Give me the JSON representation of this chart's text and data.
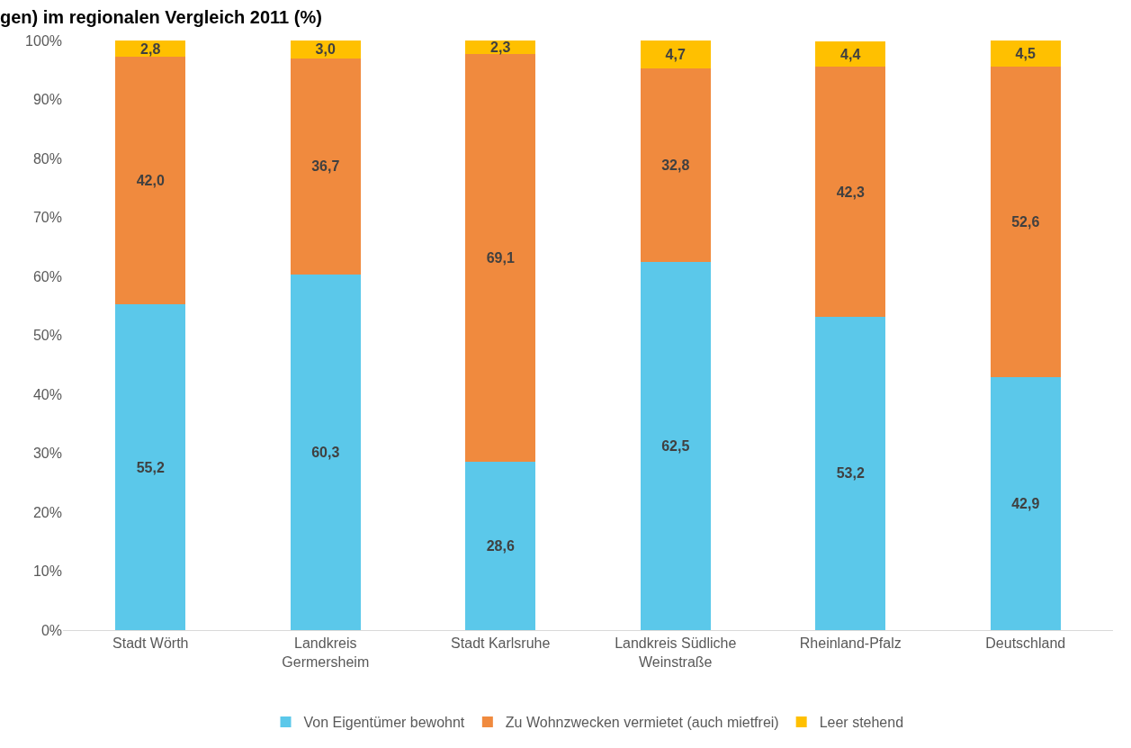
{
  "chart_data": {
    "type": "bar",
    "stacked": true,
    "title": "gen) im regionalen Vergleich 2011 (%)",
    "categories": [
      "Stadt Wörth",
      "Landkreis Germersheim",
      "Stadt Karlsruhe",
      "Landkreis Südliche Weinstraße",
      "Rheinland-Pfalz",
      "Deutschland"
    ],
    "series": [
      {
        "name": "Von Eigentümer bewohnt",
        "color": "#5bc8ea",
        "values": [
          55.2,
          60.3,
          28.6,
          62.5,
          53.2,
          42.9
        ],
        "value_labels": [
          "55,2",
          "60,3",
          "28,6",
          "62,5",
          "53,2",
          "42,9"
        ]
      },
      {
        "name": "Zu Wohnzwecken vermietet (auch mietfrei)",
        "color": "#f08a3e",
        "values": [
          42.0,
          36.7,
          69.1,
          32.8,
          42.3,
          52.6
        ],
        "value_labels": [
          "42,0",
          "36,7",
          "69,1",
          "32,8",
          "42,3",
          "52,6"
        ]
      },
      {
        "name": "Leer stehend",
        "color": "#ffc000",
        "values": [
          2.8,
          3.0,
          2.3,
          4.7,
          4.4,
          4.5
        ],
        "value_labels": [
          "2,8",
          "3,0",
          "2,3",
          "4,7",
          "4,4",
          "4,5"
        ]
      }
    ],
    "ylim": [
      0,
      100
    ],
    "yticks": [
      {
        "value": 0,
        "label": "0%"
      },
      {
        "value": 10,
        "label": "10%"
      },
      {
        "value": 20,
        "label": "20%"
      },
      {
        "value": 30,
        "label": "30%"
      },
      {
        "value": 40,
        "label": "40%"
      },
      {
        "value": 50,
        "label": "50%"
      },
      {
        "value": 60,
        "label": "60%"
      },
      {
        "value": 70,
        "label": "70%"
      },
      {
        "value": 80,
        "label": "80%"
      },
      {
        "value": 90,
        "label": "90%"
      },
      {
        "value": 100,
        "label": "100%"
      }
    ],
    "grid": false,
    "legend": "bottom"
  }
}
